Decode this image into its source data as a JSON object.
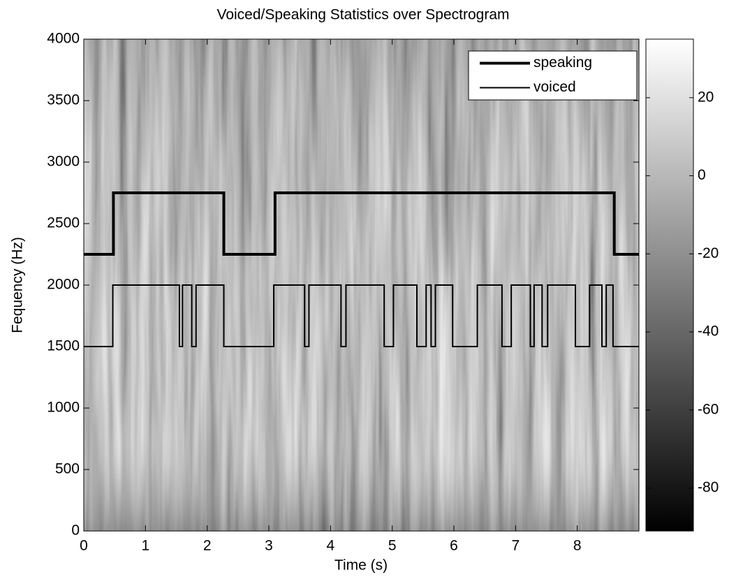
{
  "chart_data": {
    "type": "line",
    "title": "Voiced/Speaking Statistics over Spectrogram",
    "xlabel": "Time (s)",
    "ylabel": "Fequency (Hz)",
    "xlim": [
      0,
      9
    ],
    "ylim": [
      0,
      4000
    ],
    "xticks": [
      0,
      1,
      2,
      3,
      4,
      5,
      6,
      7,
      8
    ],
    "yticks": [
      0,
      500,
      1000,
      1500,
      2000,
      2500,
      3000,
      3500,
      4000
    ],
    "legend": "upper right",
    "series": [
      {
        "name": "speaking",
        "color": "#000000",
        "line_width": 4,
        "x": [
          0,
          0.48,
          0.48,
          2.27,
          2.27,
          3.1,
          3.1,
          8.6,
          8.6,
          9
        ],
        "values": [
          2250,
          2250,
          2750,
          2750,
          2250,
          2250,
          2750,
          2750,
          2250,
          2250
        ]
      },
      {
        "name": "voiced",
        "color": "#000000",
        "line_width": 2,
        "x": [
          0,
          0.47,
          0.47,
          1.55,
          1.55,
          1.6,
          1.6,
          1.75,
          1.75,
          1.82,
          1.82,
          2.27,
          2.27,
          3.08,
          3.08,
          3.58,
          3.58,
          3.65,
          3.65,
          4.17,
          4.17,
          4.25,
          4.25,
          4.87,
          4.87,
          5.02,
          5.02,
          5.4,
          5.4,
          5.55,
          5.55,
          5.63,
          5.63,
          5.7,
          5.7,
          5.98,
          5.98,
          6.38,
          6.38,
          6.78,
          6.78,
          6.93,
          6.93,
          7.24,
          7.24,
          7.3,
          7.3,
          7.43,
          7.43,
          7.52,
          7.52,
          7.97,
          7.97,
          8.2,
          8.2,
          8.4,
          8.4,
          8.47,
          8.47,
          8.58,
          8.58,
          9
        ],
        "values": [
          1500,
          1500,
          2000,
          2000,
          1500,
          1500,
          2000,
          2000,
          1500,
          1500,
          2000,
          2000,
          1500,
          1500,
          2000,
          2000,
          1500,
          1500,
          2000,
          2000,
          1500,
          1500,
          2000,
          2000,
          1500,
          1500,
          2000,
          2000,
          1500,
          1500,
          2000,
          2000,
          1500,
          1500,
          2000,
          2000,
          1500,
          1500,
          2000,
          2000,
          1500,
          1500,
          2000,
          2000,
          1500,
          1500,
          2000,
          2000,
          1500,
          1500,
          2000,
          2000,
          1500,
          1500,
          2000,
          2000,
          1500,
          1500,
          2000,
          2000,
          1500,
          1500
        ]
      }
    ],
    "colorbar": {
      "clim": [
        -91,
        35
      ],
      "ticks": [
        -80,
        -60,
        -40,
        -20,
        0,
        20
      ],
      "colormap": "gray"
    }
  }
}
